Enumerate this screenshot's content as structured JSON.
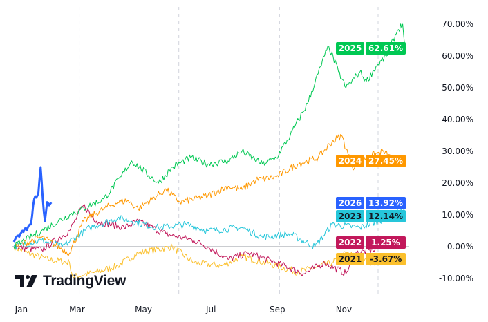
{
  "chart_data": {
    "type": "line",
    "title": "",
    "xlabel": "",
    "ylabel": "",
    "x_unit": "day of year",
    "xlim": [
      0,
      365
    ],
    "ylim": [
      -12,
      75
    ],
    "x_ticks": [
      {
        "label": "Jan",
        "day": 7
      },
      {
        "label": "Mar",
        "day": 59
      },
      {
        "label": "May",
        "day": 121
      },
      {
        "label": "Jul",
        "day": 184
      },
      {
        "label": "Sep",
        "day": 246
      },
      {
        "label": "Nov",
        "day": 308
      }
    ],
    "x_gridlines_days": [
      61,
      154,
      248,
      340
    ],
    "y_ticks": [
      {
        "label": "70.00%",
        "value": 70
      },
      {
        "label": "60.00%",
        "value": 60
      },
      {
        "label": "50.00%",
        "value": 50
      },
      {
        "label": "40.00%",
        "value": 40
      },
      {
        "label": "30.00%",
        "value": 30
      },
      {
        "label": "20.00%",
        "value": 20
      },
      {
        "label": "10.00%",
        "value": 10
      },
      {
        "label": "0.00%",
        "value": 0
      },
      {
        "label": "-10.00%",
        "value": -10
      }
    ],
    "baseline": 0,
    "series": [
      {
        "name": "2021",
        "last_label": "-3.67%",
        "color": "#fbc02d",
        "text_color": "#131722",
        "width": 1,
        "points": [
          [
            0,
            0
          ],
          [
            13,
            -2
          ],
          [
            32,
            -4
          ],
          [
            52,
            -5
          ],
          [
            55,
            -9.5
          ],
          [
            77,
            -8
          ],
          [
            97,
            -6
          ],
          [
            116,
            -2
          ],
          [
            148,
            0
          ],
          [
            168,
            -5
          ],
          [
            194,
            -6
          ],
          [
            213,
            -3
          ],
          [
            245,
            -6
          ],
          [
            265,
            -8
          ],
          [
            277,
            -7
          ],
          [
            297,
            -5
          ],
          [
            310,
            -2
          ],
          [
            335,
            -5
          ],
          [
            355,
            -4
          ],
          [
            365,
            -3.67
          ]
        ]
      },
      {
        "name": "2022",
        "last_label": "1.25%",
        "color": "#c2185b",
        "text_color": "#ffffff",
        "width": 1,
        "points": [
          [
            0,
            0
          ],
          [
            26,
            -1
          ],
          [
            52,
            5
          ],
          [
            65,
            13
          ],
          [
            77,
            8
          ],
          [
            103,
            6
          ],
          [
            116,
            8
          ],
          [
            142,
            4
          ],
          [
            168,
            2
          ],
          [
            181,
            0
          ],
          [
            200,
            -4
          ],
          [
            219,
            -2
          ],
          [
            245,
            -5
          ],
          [
            271,
            -8.5
          ],
          [
            290,
            -5
          ],
          [
            310,
            -8.5
          ],
          [
            319,
            -2
          ],
          [
            335,
            -1
          ],
          [
            348,
            1
          ],
          [
            365,
            1.25
          ]
        ]
      },
      {
        "name": "2023",
        "last_label": "12.14%",
        "color": "#26c6da",
        "text_color": "#131722",
        "width": 1,
        "points": [
          [
            0,
            0
          ],
          [
            26,
            2
          ],
          [
            45,
            0
          ],
          [
            71,
            6
          ],
          [
            97,
            9
          ],
          [
            110,
            8
          ],
          [
            135,
            6
          ],
          [
            161,
            7
          ],
          [
            181,
            5
          ],
          [
            213,
            6
          ],
          [
            232,
            3
          ],
          [
            258,
            4
          ],
          [
            281,
            0
          ],
          [
            297,
            7
          ],
          [
            323,
            6
          ],
          [
            348,
            9
          ],
          [
            365,
            12.14
          ]
        ]
      },
      {
        "name": "2024",
        "last_label": "27.45%",
        "color": "#ff9800",
        "text_color": "#ffffff",
        "width": 1,
        "points": [
          [
            0,
            0
          ],
          [
            26,
            3
          ],
          [
            52,
            -2
          ],
          [
            65,
            8
          ],
          [
            84,
            12
          ],
          [
            97,
            14
          ],
          [
            106,
            14.5
          ],
          [
            116,
            12
          ],
          [
            142,
            18
          ],
          [
            155,
            14
          ],
          [
            181,
            16
          ],
          [
            200,
            19
          ],
          [
            213,
            18
          ],
          [
            226,
            21
          ],
          [
            245,
            22
          ],
          [
            265,
            26
          ],
          [
            284,
            28
          ],
          [
            297,
            33
          ],
          [
            306,
            35
          ],
          [
            316,
            25
          ],
          [
            329,
            28
          ],
          [
            345,
            30
          ],
          [
            355,
            27
          ],
          [
            365,
            27.45
          ]
        ]
      },
      {
        "name": "2025",
        "last_label": "62.61%",
        "color": "#00c853",
        "text_color": "#ffffff",
        "width": 1,
        "points": [
          [
            0,
            0
          ],
          [
            26,
            5
          ],
          [
            52,
            10
          ],
          [
            84,
            15
          ],
          [
            100,
            22
          ],
          [
            110,
            27
          ],
          [
            135,
            20
          ],
          [
            148,
            25
          ],
          [
            165,
            28
          ],
          [
            181,
            26
          ],
          [
            200,
            27
          ],
          [
            213,
            30
          ],
          [
            232,
            26
          ],
          [
            245,
            28
          ],
          [
            258,
            35
          ],
          [
            274,
            45
          ],
          [
            290,
            60
          ],
          [
            294,
            63
          ],
          [
            303,
            55
          ],
          [
            310,
            50
          ],
          [
            323,
            55
          ],
          [
            329,
            52
          ],
          [
            339,
            57
          ],
          [
            348,
            60
          ],
          [
            358,
            68
          ],
          [
            363,
            70
          ],
          [
            365,
            62.61
          ]
        ]
      },
      {
        "name": "2026",
        "last_label": "13.92%",
        "color": "#2962ff",
        "text_color": "#ffffff",
        "width": 3,
        "points": [
          [
            0,
            1.5
          ],
          [
            6,
            4
          ],
          [
            13,
            6
          ],
          [
            16,
            7
          ],
          [
            19,
            15
          ],
          [
            23,
            17
          ],
          [
            25,
            25
          ],
          [
            27,
            15
          ],
          [
            29,
            8
          ],
          [
            31,
            14
          ],
          [
            33,
            13
          ],
          [
            35,
            13.92
          ]
        ]
      }
    ]
  },
  "branding": {
    "logo_text": "TradingView"
  }
}
